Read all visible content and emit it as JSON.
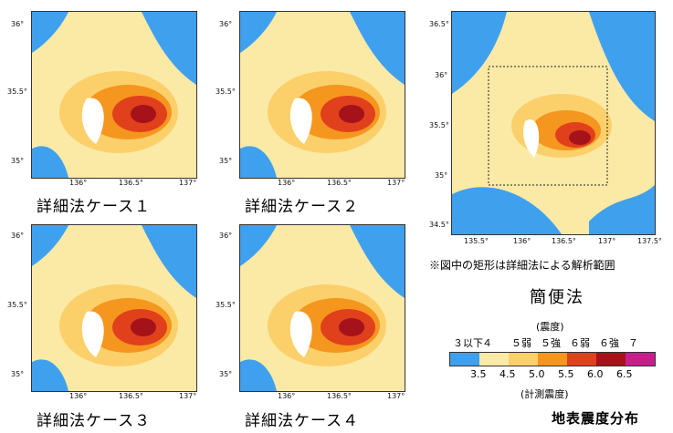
{
  "maps": [
    {
      "caption": "詳細法ケース１",
      "x_ticks": [
        "136°",
        "136.5°",
        "137°"
      ],
      "y_ticks": [
        "36°",
        "35.5°",
        "35°"
      ]
    },
    {
      "caption": "詳細法ケース２",
      "x_ticks": [
        "136°",
        "136.5°",
        "137°"
      ],
      "y_ticks": [
        "36°",
        "35.5°",
        "35°"
      ]
    },
    {
      "caption": "詳細法ケース３",
      "x_ticks": [
        "136°",
        "136.5°",
        "137°"
      ],
      "y_ticks": [
        "36°",
        "35.5°",
        "35°"
      ]
    },
    {
      "caption": "詳細法ケース４",
      "x_ticks": [
        "136°",
        "136.5°",
        "137°"
      ],
      "y_ticks": [
        "36°",
        "35.5°",
        "35°"
      ]
    }
  ],
  "simple_map": {
    "x_ticks": [
      "135.5°",
      "136°",
      "136.5°",
      "137°",
      "137.5°"
    ],
    "y_ticks": [
      "36.5°",
      "36°",
      "35.5°",
      "35°",
      "34.5°"
    ],
    "note": "※図中の矩形は詳細法による解析範囲",
    "title": "簡便法"
  },
  "legend": {
    "title": "(震度)",
    "classes": [
      "３以下",
      "４",
      "５弱",
      "５強",
      "６弱",
      "６強",
      "７"
    ],
    "values": [
      "3.5",
      "4.5",
      "5.0",
      "5.5",
      "6.0",
      "6.5"
    ],
    "subtitle": "(計測震度)",
    "colors": [
      "#3fa0ee",
      "#fbe9a6",
      "#fbd06a",
      "#f5961f",
      "#e0401c",
      "#a6121a",
      "#c61f8b"
    ]
  },
  "distribution_title": "地表震度分布"
}
